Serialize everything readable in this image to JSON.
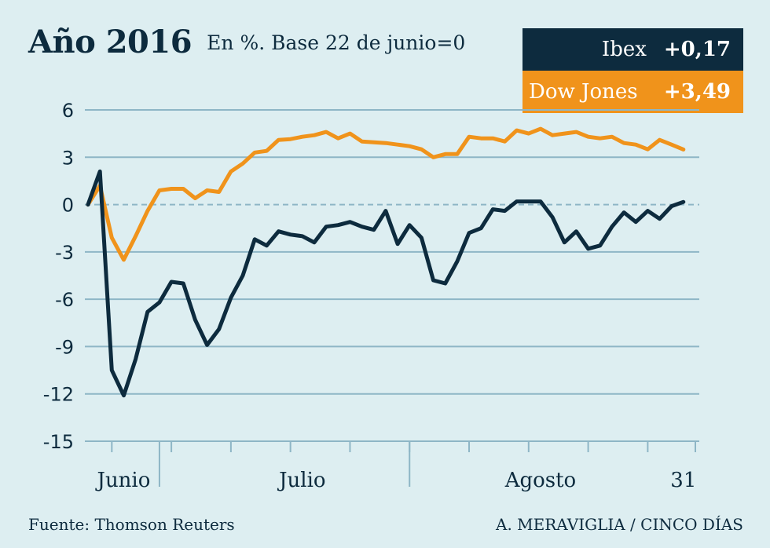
{
  "header": {
    "title": "Año 2016",
    "subtitle": "En %. Base 22 de junio=0"
  },
  "legend": [
    {
      "name": "Ibex",
      "value": "+0,17",
      "color": "#0d2b3e"
    },
    {
      "name": "Dow Jones",
      "value": "+3,49",
      "color": "#f0931b"
    }
  ],
  "footer": {
    "source": "Fuente: Thomson Reuters",
    "credit": "A. MERAVIGLIA / CINCO DÍAS"
  },
  "chart_data": {
    "type": "line",
    "ylim": [
      -15,
      6
    ],
    "yticks": [
      6,
      3,
      0,
      -3,
      -6,
      -9,
      -12,
      -15
    ],
    "ytick_labels": [
      "6",
      "3",
      "0",
      "-3",
      "-6",
      "-9",
      "-12",
      "-15"
    ],
    "x_labels": [
      "Junio",
      "Julio",
      "Agosto",
      "31"
    ],
    "x_label_positions": [
      3,
      18,
      38,
      50
    ],
    "week_ticks": [
      2,
      7,
      12,
      17,
      22,
      27,
      32,
      37,
      42,
      47,
      51
    ],
    "x_range": [
      0,
      51
    ],
    "grid": true,
    "series": [
      {
        "name": "Ibex",
        "color": "#0d2b3e",
        "values": [
          0,
          2.1,
          -10.5,
          -12.1,
          -9.8,
          -6.8,
          -6.2,
          -4.9,
          -5.0,
          -7.3,
          -8.9,
          -7.9,
          -5.9,
          -4.5,
          -2.2,
          -2.6,
          -1.7,
          -1.9,
          -2.0,
          -2.4,
          -1.4,
          -1.3,
          -1.1,
          -1.4,
          -1.6,
          -0.4,
          -2.5,
          -1.3,
          -2.1,
          -4.8,
          -5.0,
          -3.6,
          -1.8,
          -1.5,
          -0.3,
          -0.4,
          0.2,
          0.2,
          0.2,
          -0.8,
          -2.4,
          -1.7,
          -2.8,
          -2.6,
          -1.4,
          -0.5,
          -1.1,
          -0.4,
          -0.9,
          -0.1,
          0.17
        ]
      },
      {
        "name": "Dow Jones",
        "color": "#f0931b",
        "values": [
          0,
          1.2,
          -2.1,
          -3.5,
          -2.0,
          -0.4,
          0.9,
          1.0,
          1.0,
          0.4,
          0.9,
          0.8,
          2.1,
          2.6,
          3.3,
          3.4,
          4.1,
          4.15,
          4.3,
          4.4,
          4.6,
          4.2,
          4.5,
          4.0,
          3.95,
          3.9,
          3.8,
          3.7,
          3.5,
          3.0,
          3.2,
          3.2,
          4.3,
          4.2,
          4.2,
          4.0,
          4.7,
          4.5,
          4.8,
          4.4,
          4.5,
          4.6,
          4.3,
          4.2,
          4.3,
          3.9,
          3.8,
          3.5,
          4.1,
          3.8,
          3.49
        ]
      }
    ]
  }
}
